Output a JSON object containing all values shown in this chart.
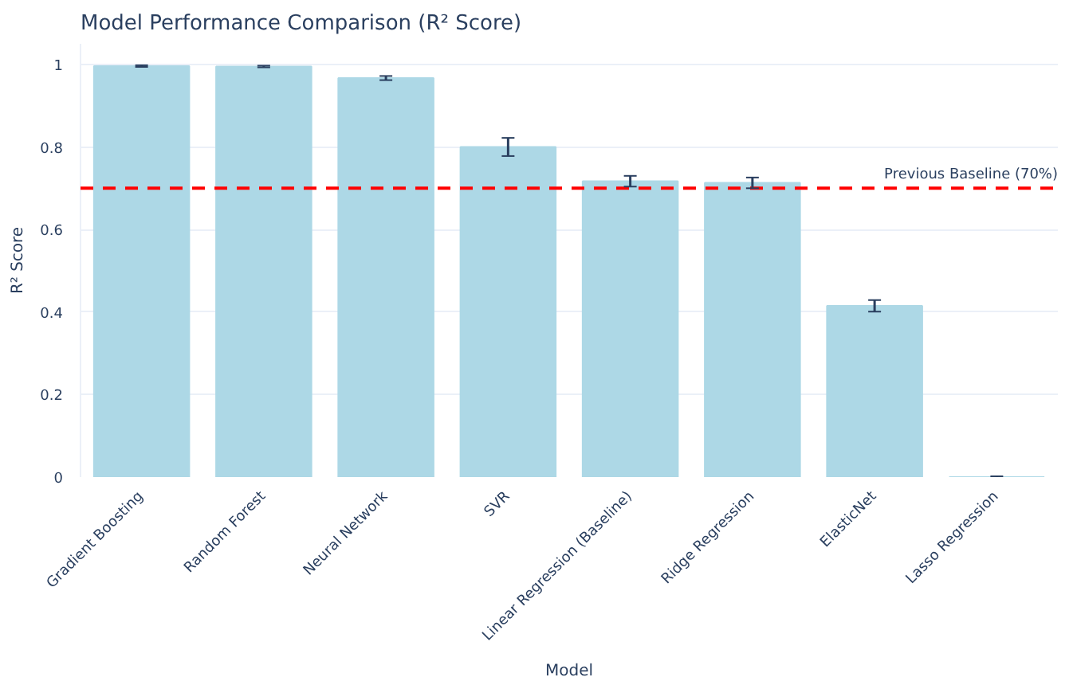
{
  "chart_data": {
    "type": "bar",
    "title": "Model Performance Comparison (R² Score)",
    "xlabel": "Model",
    "ylabel": "R² Score",
    "categories": [
      "Gradient Boosting",
      "Random Forest",
      "Neural Network",
      "SVR",
      "Linear Regression (Baseline)",
      "Ridge Regression",
      "ElasticNet",
      "Lasso Regression"
    ],
    "values": [
      0.996,
      0.995,
      0.967,
      0.8,
      0.717,
      0.713,
      0.415,
      0.0
    ],
    "errors": [
      0.002,
      0.002,
      0.005,
      0.022,
      0.013,
      0.013,
      0.014,
      0.002
    ],
    "color": "#add8e6",
    "ylim": [
      0,
      1.05
    ],
    "yticks": [
      0,
      0.2,
      0.4,
      0.6,
      0.8,
      1
    ],
    "grid": "y",
    "ref_lines": [
      {
        "axis": "y",
        "value": 0.7,
        "label": "Previous Baseline (70%)",
        "color": "#ff0000",
        "line_style": "dashed"
      }
    ]
  }
}
